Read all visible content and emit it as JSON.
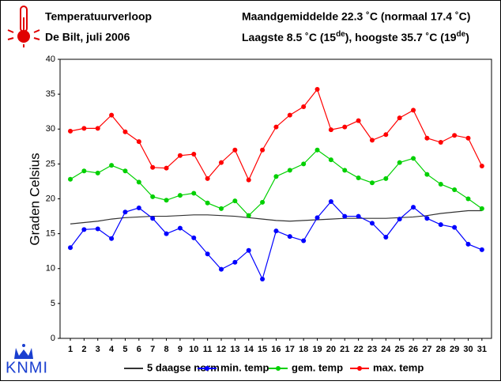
{
  "header": {
    "title": "Temperatuurverloop",
    "subtitle": "De Bilt, juli 2006",
    "summary": "Maandgemiddelde 22.3 ˚C (normaal 17.4 ˚C)",
    "extremes": [
      "Laagste 8.5 ˚C (15",
      "de",
      "), hoogste 35.7 ˚C (19",
      "de",
      ")"
    ],
    "logo": "KNMI"
  },
  "chart_data": {
    "type": "line",
    "y_label": "Graden Celsius",
    "x": [
      1,
      2,
      3,
      4,
      5,
      6,
      7,
      8,
      9,
      10,
      11,
      12,
      13,
      14,
      15,
      16,
      17,
      18,
      19,
      20,
      21,
      22,
      23,
      24,
      25,
      26,
      27,
      28,
      29,
      30,
      31
    ],
    "xlim": [
      0.25,
      31.7
    ],
    "ylim": [
      0,
      40
    ],
    "yticks": [
      0,
      5,
      10,
      15,
      20,
      25,
      30,
      35,
      40
    ],
    "grid": false,
    "series": [
      {
        "name": "5 daagse norm",
        "color": "#333333",
        "markers": false,
        "values": [
          16.4,
          16.6,
          16.8,
          17.1,
          17.3,
          17.4,
          17.5,
          17.5,
          17.6,
          17.7,
          17.7,
          17.6,
          17.5,
          17.3,
          17.1,
          16.9,
          16.8,
          16.9,
          17.0,
          17.1,
          17.2,
          17.2,
          17.2,
          17.2,
          17.3,
          17.4,
          17.6,
          17.9,
          18.1,
          18.3,
          18.3
        ]
      },
      {
        "name": "min. temp",
        "color": "#0000ff",
        "markers": true,
        "values": [
          13.0,
          15.6,
          15.7,
          14.3,
          18.1,
          18.7,
          17.2,
          15.0,
          15.8,
          14.4,
          12.1,
          9.9,
          10.9,
          12.6,
          8.5,
          15.4,
          14.6,
          14.0,
          17.3,
          19.6,
          17.5,
          17.5,
          16.5,
          14.5,
          17.1,
          18.8,
          17.2,
          16.3,
          15.9,
          13.5,
          12.7
        ]
      },
      {
        "name": "gem. temp",
        "color": "#00d000",
        "markers": true,
        "values": [
          22.8,
          24.0,
          23.7,
          24.8,
          24.0,
          22.4,
          20.3,
          19.8,
          20.5,
          20.8,
          19.4,
          18.6,
          19.7,
          17.6,
          19.5,
          23.2,
          24.1,
          25.0,
          27.0,
          25.6,
          24.1,
          23.0,
          22.3,
          22.9,
          25.2,
          25.8,
          23.5,
          22.1,
          21.3,
          20.0,
          18.6
        ]
      },
      {
        "name": "max. temp",
        "color": "#ff0000",
        "markers": true,
        "values": [
          29.7,
          30.1,
          30.1,
          32.0,
          29.6,
          28.2,
          24.5,
          24.4,
          26.2,
          26.4,
          22.9,
          25.2,
          27.0,
          22.7,
          27.0,
          30.3,
          32.0,
          33.2,
          35.7,
          29.9,
          30.3,
          31.2,
          28.4,
          29.2,
          31.6,
          32.7,
          28.7,
          28.1,
          29.1,
          28.7,
          24.7
        ]
      }
    ]
  }
}
